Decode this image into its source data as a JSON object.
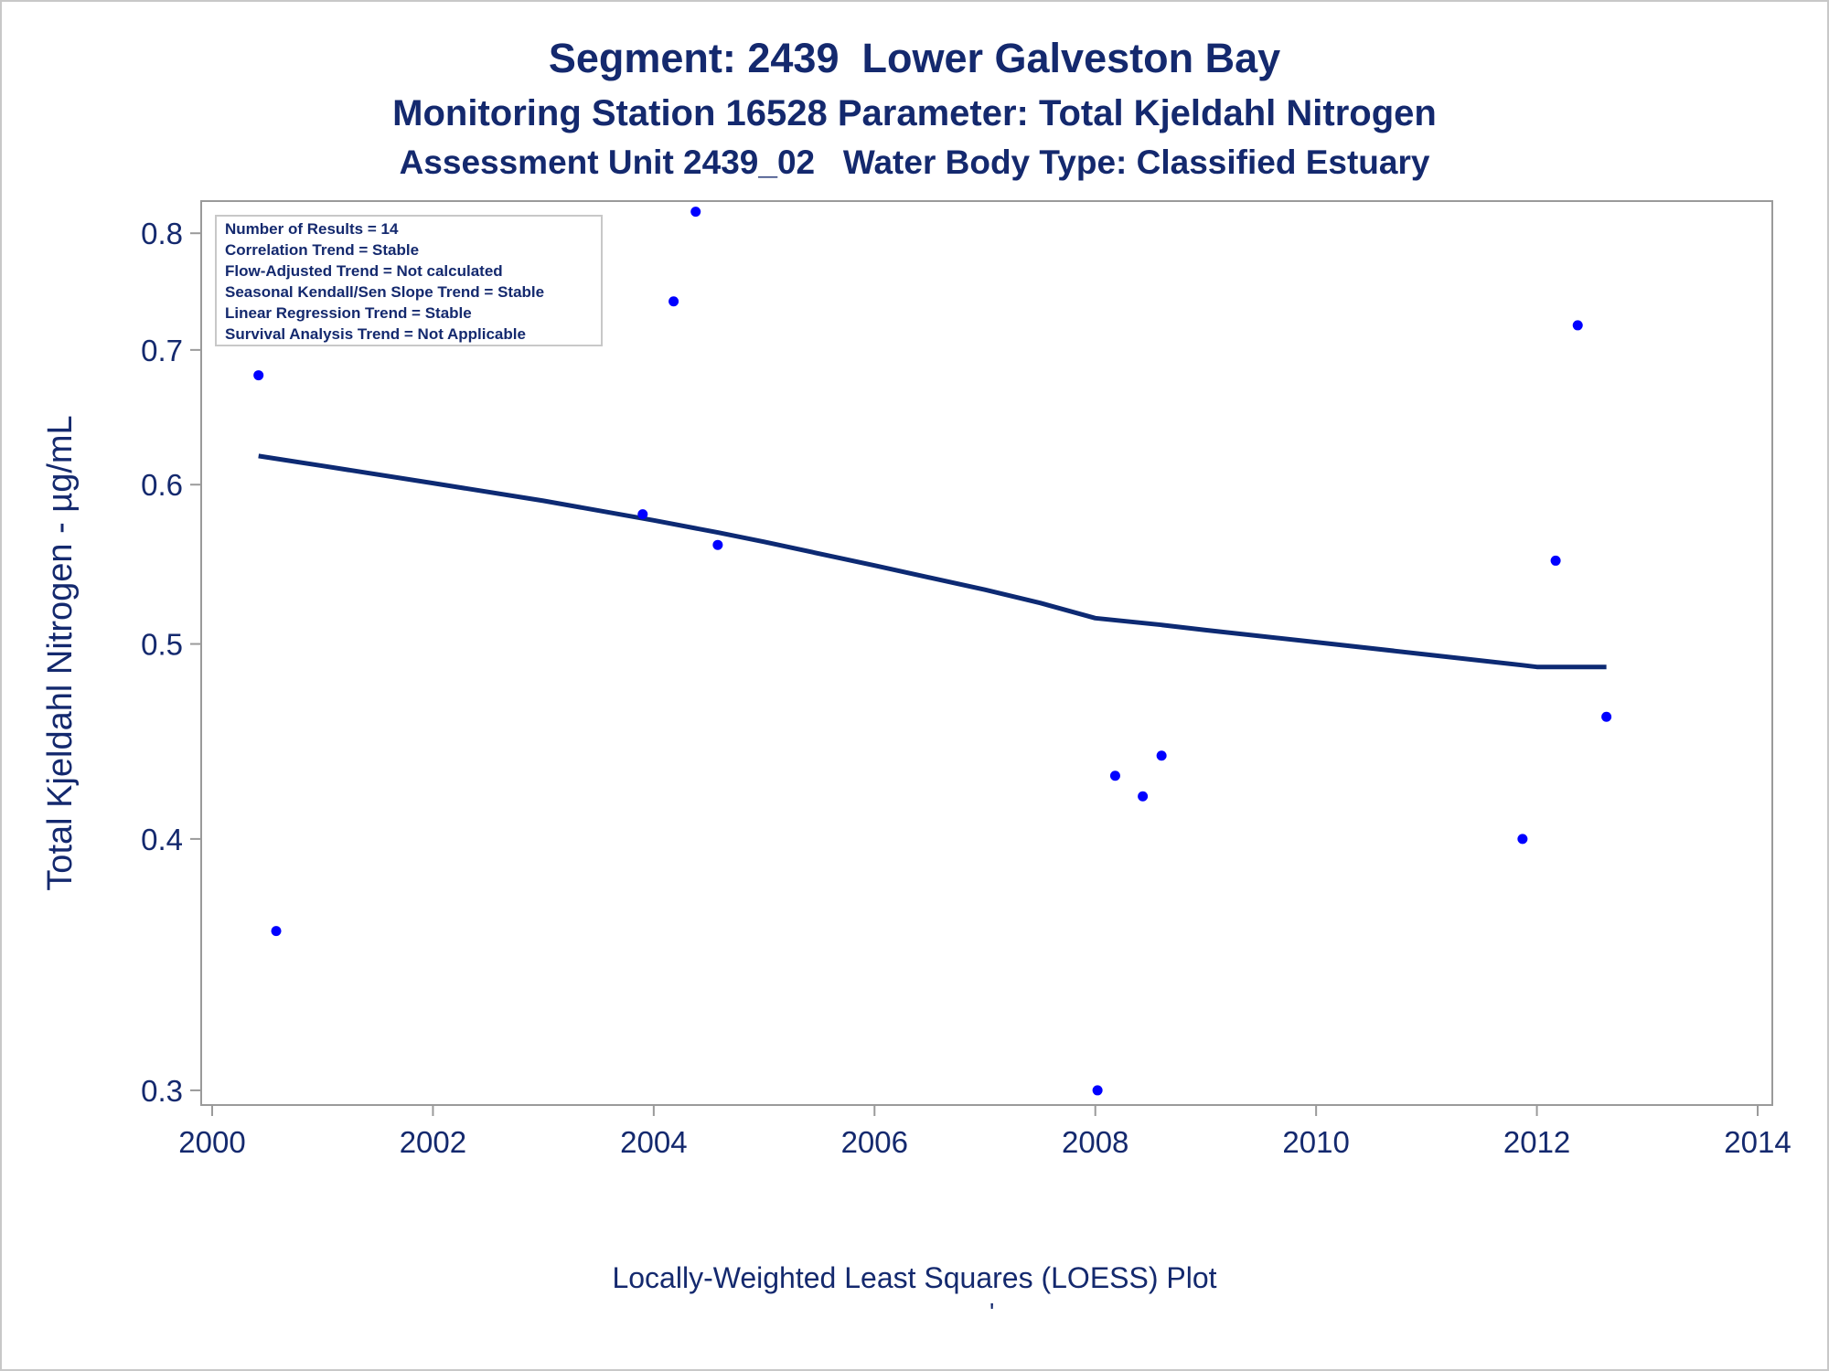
{
  "chart_data": {
    "type": "scatter",
    "title": "Segment: 2439  Lower Galveston Bay",
    "subtitle": "Monitoring Station 16528 Parameter: Total Kjeldahl Nitrogen",
    "subtitle2": "Assessment Unit 2439_02   Water Body Type: Classified Estuary",
    "xlabel": "",
    "ylabel": "Total Kjeldahl Nitrogen -  µg/mL",
    "footnote": "Locally-Weighted Least Squares (LOESS) Plot",
    "footnote_mark": "'",
    "x_ticks": [
      "2000",
      "2002",
      "2004",
      "2006",
      "2008",
      "2010",
      "2012",
      "2014"
    ],
    "y_ticks": [
      "0.3",
      "0.4",
      "0.5",
      "0.6",
      "0.7",
      "0.8"
    ],
    "xlim": [
      2000,
      2014
    ],
    "ylim": [
      0.295,
      0.83
    ],
    "y_scale": "log",
    "grid": false,
    "colors": {
      "points": "#0000ff",
      "loess": "#0d2a73",
      "text": "#14296e",
      "axis": "#9a9a9a"
    },
    "stats_box": {
      "placement": "top-left",
      "lines": [
        "Number of Results = 14",
        "Correlation Trend = Stable",
        "Flow-Adjusted Trend = Not calculated",
        "Seasonal Kendall/Sen Slope Trend = Stable",
        "Linear Regression Trend = Stable",
        "Survival Analysis Trend = Not Applicable"
      ]
    },
    "series": [
      {
        "type": "scatter",
        "points": [
          {
            "x": 2000.42,
            "y": 0.68
          },
          {
            "x": 2000.58,
            "y": 0.36
          },
          {
            "x": 2003.9,
            "y": 0.58
          },
          {
            "x": 2004.18,
            "y": 0.74
          },
          {
            "x": 2004.38,
            "y": 0.82
          },
          {
            "x": 2004.58,
            "y": 0.56
          },
          {
            "x": 2008.02,
            "y": 0.3
          },
          {
            "x": 2008.18,
            "y": 0.43
          },
          {
            "x": 2008.43,
            "y": 0.42
          },
          {
            "x": 2008.6,
            "y": 0.44
          },
          {
            "x": 2011.87,
            "y": 0.4
          },
          {
            "x": 2012.17,
            "y": 0.55
          },
          {
            "x": 2012.37,
            "y": 0.72
          },
          {
            "x": 2012.63,
            "y": 0.46
          }
        ]
      },
      {
        "type": "line",
        "points": [
          {
            "x": 2000.42,
            "y": 0.62
          },
          {
            "x": 2001.0,
            "y": 0.613
          },
          {
            "x": 2002.0,
            "y": 0.601
          },
          {
            "x": 2003.0,
            "y": 0.589
          },
          {
            "x": 2004.0,
            "y": 0.576
          },
          {
            "x": 2004.58,
            "y": 0.568
          },
          {
            "x": 2005.0,
            "y": 0.562
          },
          {
            "x": 2006.0,
            "y": 0.547
          },
          {
            "x": 2007.0,
            "y": 0.532
          },
          {
            "x": 2007.5,
            "y": 0.524
          },
          {
            "x": 2008.0,
            "y": 0.515
          },
          {
            "x": 2008.6,
            "y": 0.511
          },
          {
            "x": 2009.0,
            "y": 0.508
          },
          {
            "x": 2010.0,
            "y": 0.501
          },
          {
            "x": 2011.0,
            "y": 0.494
          },
          {
            "x": 2011.87,
            "y": 0.488
          },
          {
            "x": 2012.0,
            "y": 0.487
          },
          {
            "x": 2012.63,
            "y": 0.487
          }
        ]
      }
    ]
  }
}
